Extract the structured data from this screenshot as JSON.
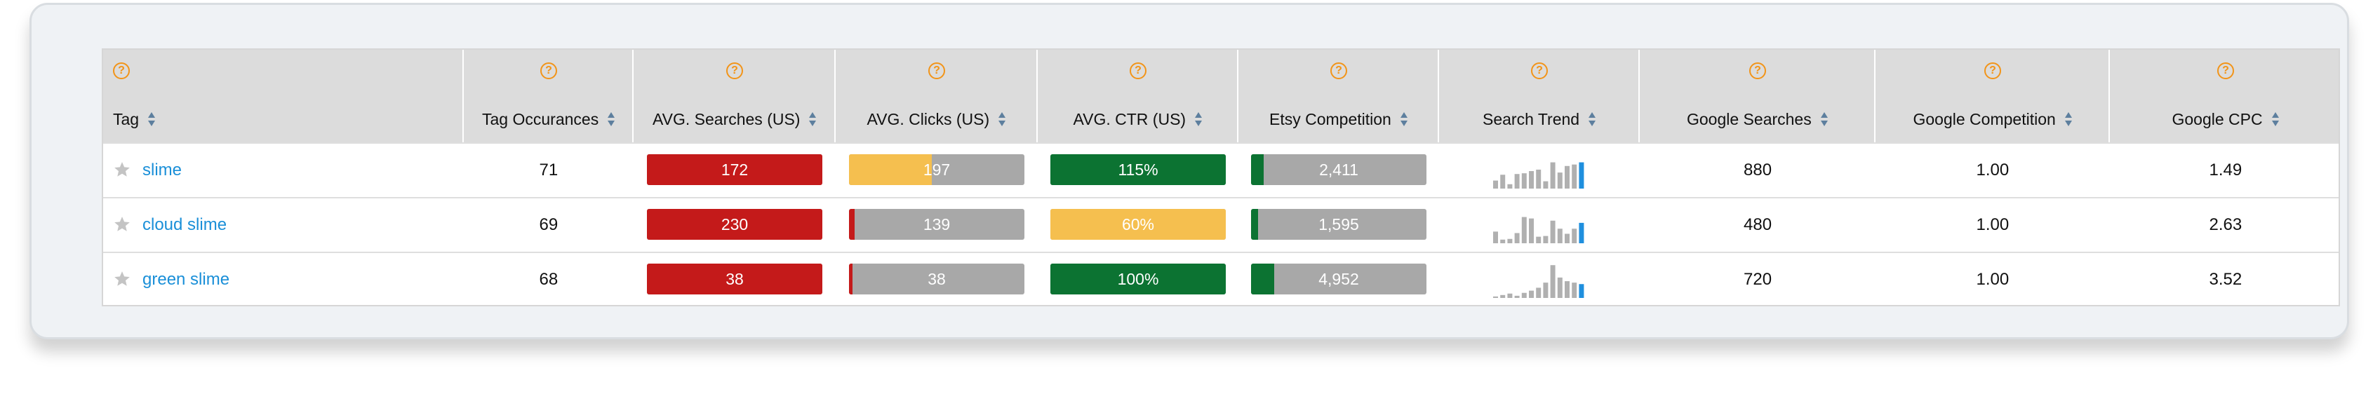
{
  "colors": {
    "red": "#c41a1a",
    "yellow": "#f5bf4f",
    "green": "#0c7332",
    "gray": "#a8a8a8",
    "link": "#1a8fd8",
    "help": "#f29418",
    "sparkBar": "#b0b0b0",
    "sparkLast": "#1f8fde"
  },
  "columns": [
    {
      "label": "Tag"
    },
    {
      "label": "Tag Occurances"
    },
    {
      "label": "AVG. Searches (US)"
    },
    {
      "label": "AVG. Clicks (US)"
    },
    {
      "label": "AVG. CTR (US)"
    },
    {
      "label": "Etsy Competition"
    },
    {
      "label": "Search Trend"
    },
    {
      "label": "Google Searches"
    },
    {
      "label": "Google Competition"
    },
    {
      "label": "Google CPC"
    }
  ],
  "rows": [
    {
      "tag": "slime",
      "occurrences": "71",
      "searches": {
        "text": "172",
        "fill": 1.0,
        "color": "red"
      },
      "clicks": {
        "text": "197",
        "fill": 0.47,
        "color": "yellow"
      },
      "ctr": {
        "text": "115%",
        "fill": 1.0,
        "color": "green"
      },
      "etsy": {
        "text": "2,411",
        "fill": 0.07,
        "color": "green"
      },
      "trend": [
        0.22,
        0.38,
        0.12,
        0.4,
        0.42,
        0.48,
        0.52,
        0.2,
        0.72,
        0.44,
        0.62,
        0.66,
        0.72
      ],
      "google_searches": "880",
      "google_competition": "1.00",
      "google_cpc": "1.49"
    },
    {
      "tag": "cloud slime",
      "occurrences": "69",
      "searches": {
        "text": "230",
        "fill": 1.0,
        "color": "red"
      },
      "clicks": {
        "text": "139",
        "fill": 0.03,
        "color": "red"
      },
      "ctr": {
        "text": "60%",
        "fill": 1.0,
        "color": "yellow"
      },
      "etsy": {
        "text": "1,595",
        "fill": 0.04,
        "color": "green"
      },
      "trend": [
        0.32,
        0.1,
        0.12,
        0.28,
        0.72,
        0.68,
        0.18,
        0.2,
        0.62,
        0.4,
        0.26,
        0.4,
        0.56
      ],
      "google_searches": "480",
      "google_competition": "1.00",
      "google_cpc": "2.63"
    },
    {
      "tag": "green slime",
      "occurrences": "68",
      "searches": {
        "text": "38",
        "fill": 1.0,
        "color": "red"
      },
      "clicks": {
        "text": "38",
        "fill": 0.02,
        "color": "red"
      },
      "ctr": {
        "text": "100%",
        "fill": 1.0,
        "color": "green"
      },
      "etsy": {
        "text": "4,952",
        "fill": 0.13,
        "color": "green"
      },
      "trend": [
        0.04,
        0.08,
        0.12,
        0.06,
        0.14,
        0.2,
        0.28,
        0.42,
        0.9,
        0.56,
        0.46,
        0.42,
        0.38
      ],
      "google_searches": "720",
      "google_competition": "1.00",
      "google_cpc": "3.52"
    }
  ]
}
